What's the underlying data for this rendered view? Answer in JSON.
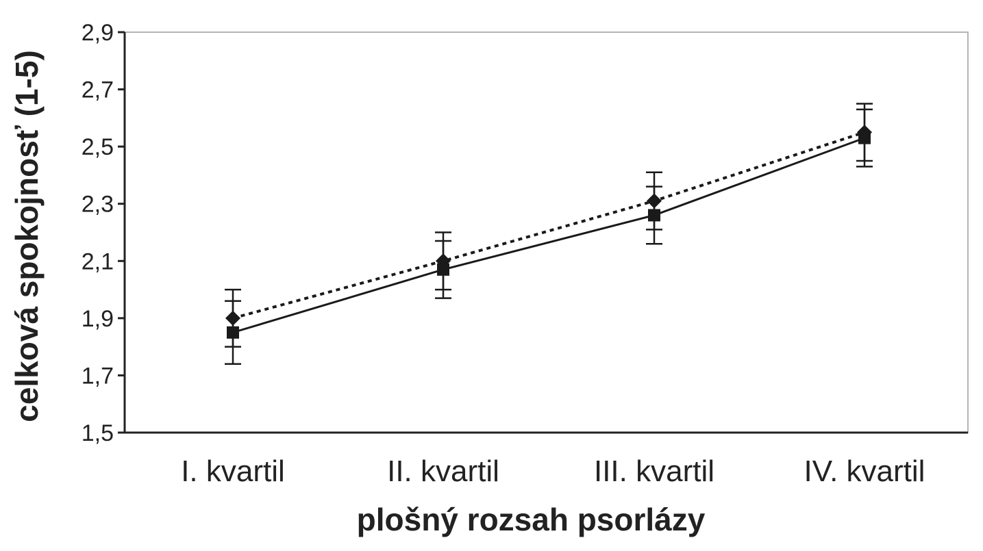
{
  "chart_data": {
    "type": "line",
    "title": "",
    "xlabel": "plošný rozsah psorlázy",
    "ylabel": "celková spokojnosť (1-5)",
    "categories": [
      "I. kvartil",
      "II. kvartil",
      "III. kvartil",
      "IV. kvartil"
    ],
    "ylim": [
      1.5,
      2.9
    ],
    "yticks": [
      "1,5",
      "1,7",
      "1,9",
      "2,1",
      "2,3",
      "2,5",
      "2,7",
      "2,9"
    ],
    "ytick_values": [
      1.5,
      1.7,
      1.9,
      2.1,
      2.3,
      2.5,
      2.7,
      2.9
    ],
    "grid": false,
    "legend": "none",
    "series": [
      {
        "values": [
          1.85,
          2.07,
          2.26,
          2.53
        ],
        "error_low": [
          1.74,
          1.97,
          2.16,
          2.43
        ],
        "error_high": [
          1.96,
          2.17,
          2.36,
          2.63
        ],
        "marker": "square",
        "line_style": "solid",
        "color": "#1a1a1a"
      },
      {
        "values": [
          1.9,
          2.1,
          2.31,
          2.55
        ],
        "error_low": [
          1.8,
          2.0,
          2.21,
          2.45
        ],
        "error_high": [
          2.0,
          2.2,
          2.41,
          2.65
        ],
        "marker": "diamond",
        "line_style": "dotted",
        "color": "#1a1a1a"
      }
    ]
  }
}
